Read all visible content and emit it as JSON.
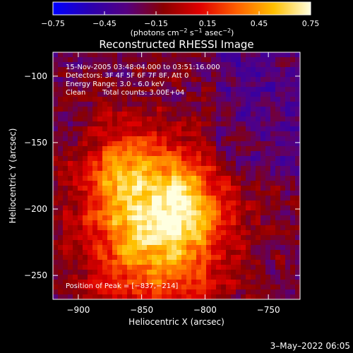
{
  "chart_data": {
    "type": "heatmap",
    "title": "Reconstructed RHESSI Image",
    "xlabel": "Heliocentric X (arcsec)",
    "ylabel": "Heliocentric Y (arcsec)",
    "xlim": [
      -920,
      -725
    ],
    "ylim": [
      -268,
      -82
    ],
    "x_ticks": [
      -900,
      -850,
      -800,
      -750
    ],
    "x_tick_labels": [
      "−900",
      "−850",
      "−800",
      "−750"
    ],
    "y_ticks": [
      -100,
      -150,
      -200,
      -250
    ],
    "y_tick_labels": [
      "−100",
      "−150",
      "−200",
      "−250"
    ],
    "colorbar": {
      "range": [
        -0.75,
        0.75
      ],
      "ticks": [
        -0.75,
        -0.45,
        -0.15,
        0.15,
        0.45,
        0.75
      ],
      "tick_labels": [
        "−0.75",
        "−0.45",
        "−0.15",
        "0.15",
        "0.45",
        "0.75"
      ],
      "unit_main": "(photons cm",
      "unit_exp1": "−2",
      "unit_mid": " s",
      "unit_exp2": "−1",
      "unit_mid2": " asec",
      "unit_exp3": "−2",
      "unit_end": ")",
      "stops": [
        "#0000ff",
        "#2a00b0",
        "#550080",
        "#8a0000",
        "#e00000",
        "#ff6000",
        "#ffc000",
        "#ffffe0"
      ]
    },
    "peak": [
      -837,
      -214
    ],
    "annotations": {
      "time": "15-Nov-2005 03:48:04.000 to 03:51:16.000",
      "detectors": "Detectors: 3F 4F 5F 6F 7F 8F, Att 0",
      "energy": "Energy Range: 3.0 - 6.0 keV",
      "method": "Clean",
      "counts": "Total counts: 3.00E+04",
      "peak_label": "Position of Peak = [−837,−214]"
    }
  },
  "footer": {
    "timestamp": "3–May–2022 06:05"
  }
}
